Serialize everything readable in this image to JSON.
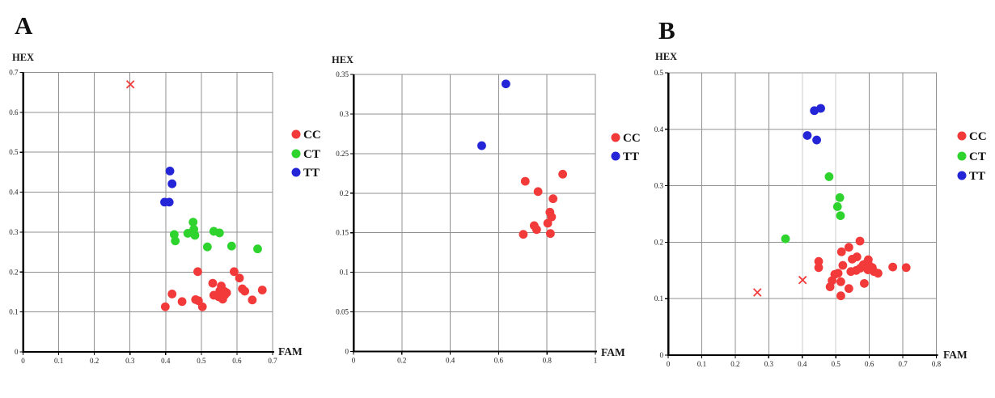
{
  "panels": {
    "a_label": "A",
    "b_label": "B"
  },
  "colors": {
    "cc": "#f23a3a",
    "ct": "#2ed32e",
    "tt": "#2525d8",
    "x_marker": "#f23a3a",
    "grid": "#909090",
    "grid_light": "#cccccc",
    "axis": "#000000",
    "text": "#1a1a1a"
  },
  "chart_data": [
    {
      "id": "plot1",
      "panel_letter": "A",
      "type": "scatter",
      "xlabel": "FAM",
      "ylabel": "HEX",
      "xlim": [
        0,
        0.7
      ],
      "ylim": [
        0,
        0.7
      ],
      "grid": true,
      "xticks": {
        "values": [
          0,
          0.1,
          0.2,
          0.3,
          0.4,
          0.5,
          0.6,
          0.7
        ],
        "labels": [
          "0",
          "0.1",
          "0.2",
          "0.3",
          "0.4",
          "0.5",
          "0.6",
          "0.7"
        ]
      },
      "yticks": {
        "values": [
          0,
          0.1,
          0.2,
          0.3,
          0.4,
          0.5,
          0.6,
          0.7
        ],
        "labels": [
          "0",
          "0.1",
          "0.2",
          "0.3",
          "0.4",
          "0.5",
          "0.6",
          "0.7"
        ]
      },
      "legend": {
        "position": "right",
        "entries": [
          {
            "label": "CC",
            "color_key": "cc"
          },
          {
            "label": "CT",
            "color_key": "ct"
          },
          {
            "label": "TT",
            "color_key": "tt"
          }
        ]
      },
      "light_x_gridlines": [],
      "series": [
        {
          "name": "CC",
          "marker": "circle",
          "color_key": "cc",
          "points": [
            [
              0.49,
              0.201
            ],
            [
              0.592,
              0.201
            ],
            [
              0.607,
              0.185
            ],
            [
              0.532,
              0.172
            ],
            [
              0.556,
              0.165
            ],
            [
              0.552,
              0.153
            ],
            [
              0.564,
              0.152
            ],
            [
              0.566,
              0.143
            ],
            [
              0.549,
              0.138
            ],
            [
              0.56,
              0.132
            ],
            [
              0.535,
              0.142
            ],
            [
              0.492,
              0.128
            ],
            [
              0.484,
              0.131
            ],
            [
              0.503,
              0.113
            ],
            [
              0.418,
              0.145
            ],
            [
              0.446,
              0.126
            ],
            [
              0.399,
              0.113
            ],
            [
              0.615,
              0.158
            ],
            [
              0.622,
              0.152
            ],
            [
              0.643,
              0.13
            ],
            [
              0.671,
              0.155
            ],
            [
              0.571,
              0.148
            ]
          ]
        },
        {
          "name": "CT",
          "marker": "circle",
          "color_key": "ct",
          "points": [
            [
              0.477,
              0.325
            ],
            [
              0.479,
              0.307
            ],
            [
              0.462,
              0.297
            ],
            [
              0.482,
              0.292
            ],
            [
              0.424,
              0.294
            ],
            [
              0.427,
              0.278
            ],
            [
              0.535,
              0.302
            ],
            [
              0.551,
              0.298
            ],
            [
              0.517,
              0.263
            ],
            [
              0.585,
              0.265
            ],
            [
              0.658,
              0.258
            ]
          ]
        },
        {
          "name": "TT",
          "marker": "circle",
          "color_key": "tt",
          "points": [
            [
              0.412,
              0.453
            ],
            [
              0.418,
              0.421
            ],
            [
              0.397,
              0.375
            ],
            [
              0.41,
              0.375
            ]
          ]
        },
        {
          "name": "X",
          "marker": "x",
          "color_key": "x_marker",
          "points": [
            [
              0.301,
              0.67
            ]
          ]
        }
      ]
    },
    {
      "id": "plot2",
      "panel_letter": "",
      "type": "scatter",
      "xlabel": "FAM",
      "ylabel": "HEX",
      "xlim": [
        0,
        1
      ],
      "ylim": [
        0,
        0.35
      ],
      "grid": true,
      "xticks": {
        "values": [
          0,
          0.2,
          0.4,
          0.6,
          0.8,
          1
        ],
        "labels": [
          "0",
          "0.2",
          "0.4",
          "0.6",
          "0.8",
          "1"
        ]
      },
      "yticks": {
        "values": [
          0,
          0.05,
          0.1,
          0.15,
          0.2,
          0.25,
          0.3,
          0.35
        ],
        "labels": [
          "0",
          "0.05",
          "0.1",
          "0.15",
          "0.2",
          "0.25",
          "0.3",
          "0.35"
        ]
      },
      "legend": {
        "position": "right",
        "entries": [
          {
            "label": "CC",
            "color_key": "cc"
          },
          {
            "label": "TT",
            "color_key": "tt"
          }
        ]
      },
      "light_x_gridlines": [],
      "series": [
        {
          "name": "CC",
          "marker": "circle",
          "color_key": "cc",
          "points": [
            [
              0.71,
              0.215
            ],
            [
              0.865,
              0.224
            ],
            [
              0.763,
              0.202
            ],
            [
              0.825,
              0.193
            ],
            [
              0.812,
              0.176
            ],
            [
              0.819,
              0.17
            ],
            [
              0.803,
              0.162
            ],
            [
              0.747,
              0.159
            ],
            [
              0.757,
              0.154
            ],
            [
              0.702,
              0.148
            ],
            [
              0.814,
              0.149
            ]
          ]
        },
        {
          "name": "TT",
          "marker": "circle",
          "color_key": "tt",
          "points": [
            [
              0.63,
              0.338
            ],
            [
              0.53,
              0.26
            ]
          ]
        }
      ]
    },
    {
      "id": "plot3",
      "panel_letter": "B",
      "type": "scatter",
      "xlabel": "FAM",
      "ylabel": "HEX",
      "xlim": [
        0,
        0.8
      ],
      "ylim": [
        0,
        0.5
      ],
      "grid": true,
      "xticks": {
        "values": [
          0,
          0.1,
          0.2,
          0.3,
          0.4,
          0.5,
          0.6,
          0.7,
          0.8
        ],
        "labels": [
          "0",
          "0.1",
          "0.2",
          "0.3",
          "0.4",
          "0.5",
          "0.6",
          "0.7",
          "0.8"
        ]
      },
      "yticks": {
        "values": [
          0,
          0.1,
          0.2,
          0.3,
          0.4,
          0.5
        ],
        "labels": [
          "0",
          "0.1",
          "0.2",
          "0.3",
          "0.4",
          "0.5"
        ]
      },
      "legend": {
        "position": "right",
        "entries": [
          {
            "label": "CC",
            "color_key": "cc"
          },
          {
            "label": "CT",
            "color_key": "ct"
          },
          {
            "label": "TT",
            "color_key": "tt"
          }
        ]
      },
      "light_x_gridlines": [
        0.4,
        0.5
      ],
      "series": [
        {
          "name": "CC",
          "marker": "circle",
          "color_key": "cc",
          "points": [
            [
              0.449,
              0.166
            ],
            [
              0.449,
              0.155
            ],
            [
              0.517,
              0.183
            ],
            [
              0.539,
              0.191
            ],
            [
              0.572,
              0.202
            ],
            [
              0.549,
              0.17
            ],
            [
              0.563,
              0.174
            ],
            [
              0.521,
              0.159
            ],
            [
              0.507,
              0.145
            ],
            [
              0.497,
              0.143
            ],
            [
              0.489,
              0.132
            ],
            [
              0.483,
              0.121
            ],
            [
              0.515,
              0.13
            ],
            [
              0.539,
              0.118
            ],
            [
              0.585,
              0.127
            ],
            [
              0.545,
              0.148
            ],
            [
              0.561,
              0.15
            ],
            [
              0.573,
              0.154
            ],
            [
              0.582,
              0.16
            ],
            [
              0.592,
              0.163
            ],
            [
              0.601,
              0.158
            ],
            [
              0.609,
              0.155
            ],
            [
              0.596,
              0.151
            ],
            [
              0.597,
              0.169
            ],
            [
              0.614,
              0.148
            ],
            [
              0.626,
              0.145
            ],
            [
              0.67,
              0.156
            ],
            [
              0.71,
              0.155
            ],
            [
              0.515,
              0.105
            ]
          ]
        },
        {
          "name": "CT",
          "marker": "circle",
          "color_key": "ct",
          "points": [
            [
              0.48,
              0.316
            ],
            [
              0.512,
              0.279
            ],
            [
              0.505,
              0.263
            ],
            [
              0.514,
              0.247
            ],
            [
              0.35,
              0.206
            ]
          ]
        },
        {
          "name": "TT",
          "marker": "circle",
          "color_key": "tt",
          "points": [
            [
              0.436,
              0.433
            ],
            [
              0.455,
              0.437
            ],
            [
              0.415,
              0.389
            ],
            [
              0.443,
              0.381
            ]
          ]
        },
        {
          "name": "X",
          "marker": "x",
          "color_key": "x_marker",
          "points": [
            [
              0.266,
              0.111
            ],
            [
              0.401,
              0.133
            ]
          ]
        }
      ]
    }
  ]
}
